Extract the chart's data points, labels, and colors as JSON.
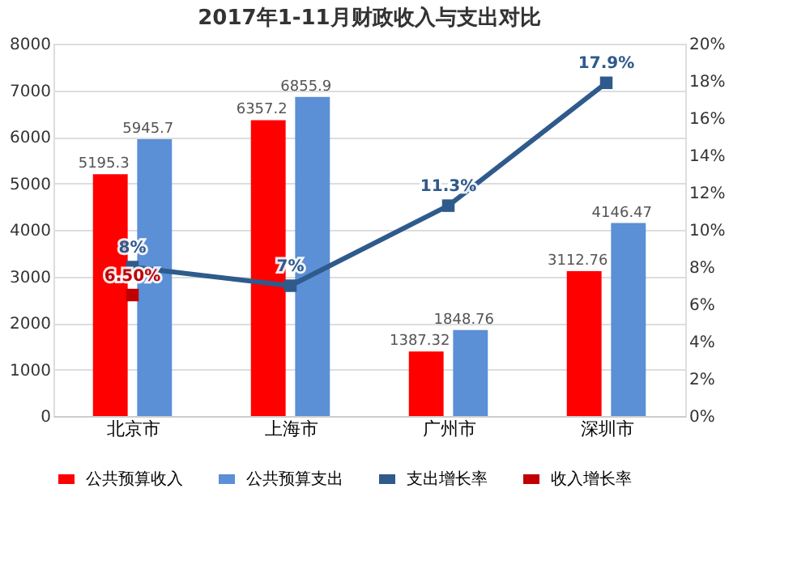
{
  "chart_data": {
    "type": "bar",
    "title": "2017年1-11月财政收入与支出对比",
    "categories": [
      "北京市",
      "上海市",
      "广州市",
      "深圳市"
    ],
    "series": [
      {
        "name": "公共预算收入",
        "color": "#ff0000",
        "values": [
          5195.3,
          6357.2,
          1387.32,
          3112.76
        ],
        "value_labels": [
          "5195.3",
          "6357.2",
          "1387.32",
          "3112.76"
        ]
      },
      {
        "name": "公共预算支出",
        "color": "#5b8fd6",
        "values": [
          5945.7,
          6855.9,
          1848.76,
          4146.47
        ],
        "value_labels": [
          "5945.7",
          "6855.9",
          "1848.76",
          "4146.47"
        ]
      },
      {
        "name": "支出增长率",
        "type": "line",
        "axis": "y2",
        "color": "#2f5a8c",
        "marker": "square",
        "values": [
          8,
          7,
          11.3,
          17.9
        ],
        "value_labels": [
          "8%",
          "7%",
          "11.3%",
          "17.9%"
        ]
      },
      {
        "name": "收入增长率",
        "type": "line",
        "axis": "y2",
        "color": "#c00000",
        "marker": "square",
        "values": [
          6.5,
          null,
          null,
          null
        ],
        "value_labels": [
          "6.50%",
          null,
          null,
          null
        ]
      }
    ],
    "ylim": [
      0,
      8000
    ],
    "yticks": [
      0,
      1000,
      2000,
      3000,
      4000,
      5000,
      6000,
      7000,
      8000
    ],
    "y2lim": [
      0,
      20
    ],
    "y2ticks": [
      {
        "value": 0,
        "label": "0%"
      },
      {
        "value": 2,
        "label": "2%"
      },
      {
        "value": 4,
        "label": "4%"
      },
      {
        "value": 6,
        "label": "6%"
      },
      {
        "value": 8,
        "label": "8%"
      },
      {
        "value": 10,
        "label": "10%"
      },
      {
        "value": 12,
        "label": "12%"
      },
      {
        "value": 14,
        "label": "14%"
      },
      {
        "value": 16,
        "label": "16%"
      },
      {
        "value": 18,
        "label": "18%"
      },
      {
        "value": 20,
        "label": "20%"
      }
    ],
    "grid": "y",
    "legend": "bottom"
  }
}
